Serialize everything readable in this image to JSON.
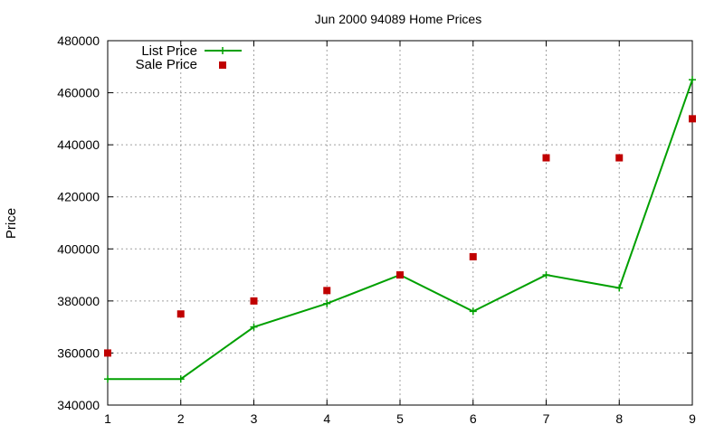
{
  "chart_data": {
    "type": "line",
    "title": "Jun 2000 94089 Home Prices",
    "xlabel": "",
    "ylabel": "Price",
    "x": [
      1,
      2,
      3,
      4,
      5,
      6,
      7,
      8,
      9
    ],
    "xlim": [
      1,
      9
    ],
    "ylim": [
      340000,
      480000
    ],
    "x_ticks": [
      "1",
      "2",
      "3",
      "4",
      "5",
      "6",
      "7",
      "8",
      "9"
    ],
    "y_ticks": [
      "340000",
      "360000",
      "380000",
      "400000",
      "420000",
      "440000",
      "460000",
      "480000"
    ],
    "grid": true,
    "legend_position": "top-left",
    "series": [
      {
        "name": "List Price",
        "style": "lines+points",
        "color": "#00a000",
        "values": [
          350000,
          350000,
          370000,
          379000,
          390000,
          376000,
          390000,
          385000,
          465000
        ]
      },
      {
        "name": "Sale Price",
        "style": "points",
        "color": "#c00000",
        "values": [
          360000,
          375000,
          380000,
          384000,
          390000,
          397000,
          435000,
          435000,
          450000
        ]
      }
    ]
  }
}
